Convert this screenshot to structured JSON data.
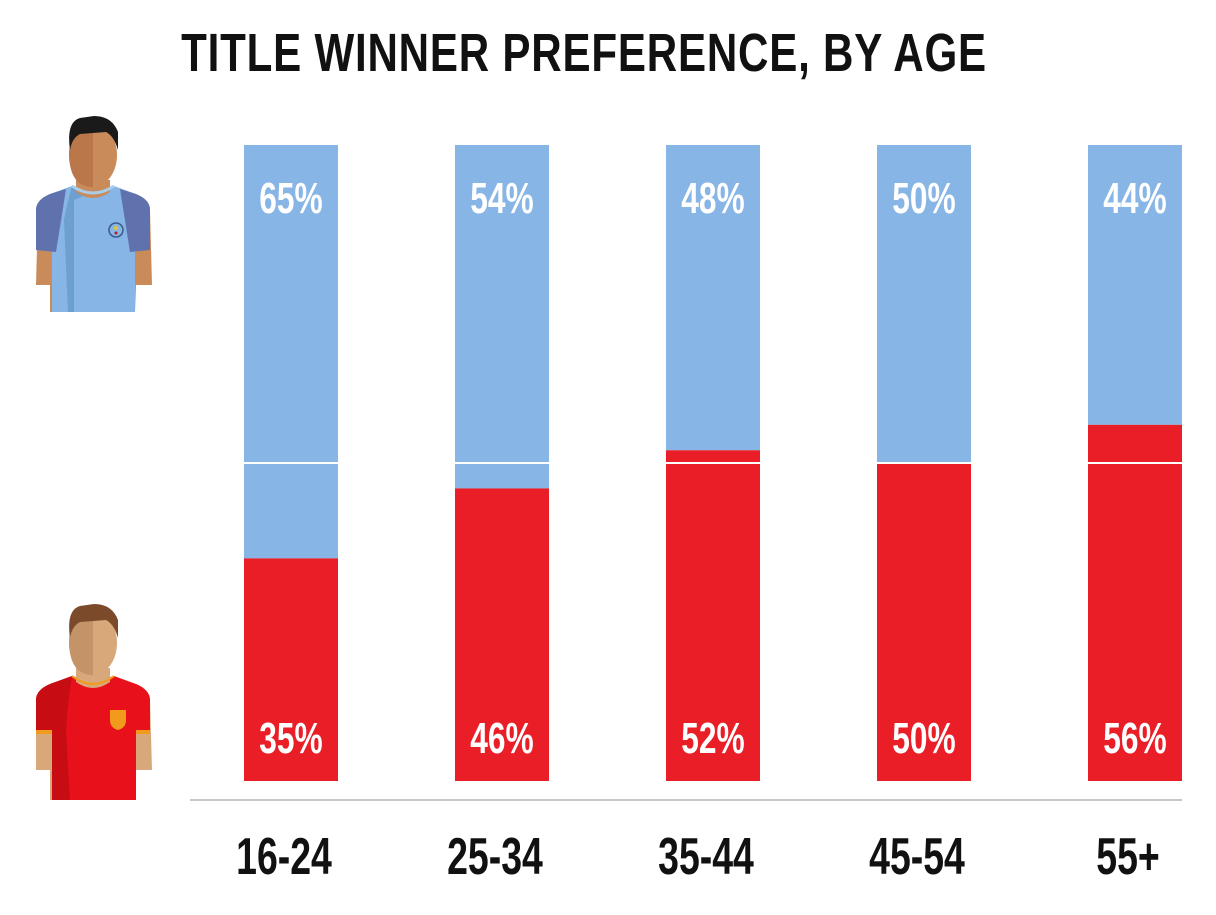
{
  "chart_data": {
    "type": "bar",
    "stacked": true,
    "title": "TITLE WINNER PREFERENCE, BY AGE",
    "categories": [
      "16-24",
      "25-34",
      "35-44",
      "45-54",
      "55+"
    ],
    "series": [
      {
        "icon": "blue-kit-player-icon",
        "color": "#87b5e5",
        "values": [
          65,
          54,
          48,
          50,
          44
        ]
      },
      {
        "icon": "red-kit-player-icon",
        "color": "#e91e26",
        "values": [
          35,
          46,
          52,
          50,
          56
        ]
      }
    ],
    "value_suffix": "%",
    "ylim": [
      0,
      100
    ],
    "reference_line": 50,
    "grid": false
  }
}
